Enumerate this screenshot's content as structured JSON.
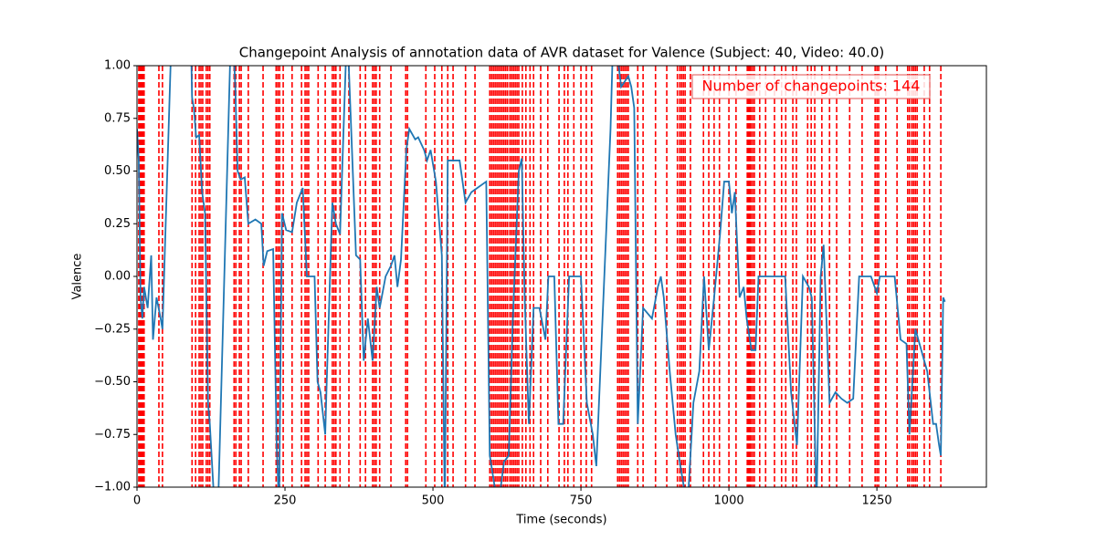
{
  "chart_data": {
    "type": "line",
    "title": "Changepoint Analysis of annotation data of AVR dataset for Valence (Subject: 40, Video: 40.0)",
    "xlabel": "Time (seconds)",
    "ylabel": "Valence",
    "annotation": "Number of changepoints: 144",
    "xlim": [
      0,
      1435
    ],
    "ylim": [
      -1,
      1
    ],
    "xticks": [
      0,
      250,
      500,
      750,
      1000,
      1250
    ],
    "yticks": [
      {
        "value": -1,
        "label": "−1.00"
      },
      {
        "value": -0.75,
        "label": "−0.75"
      },
      {
        "value": -0.5,
        "label": "−0.50"
      },
      {
        "value": -0.25,
        "label": "−0.25"
      },
      {
        "value": 0,
        "label": "0.00"
      },
      {
        "value": 0.25,
        "label": "0.25"
      },
      {
        "value": 0.5,
        "label": "0.50"
      },
      {
        "value": 0.75,
        "label": "0.75"
      },
      {
        "value": 1,
        "label": "1.00"
      }
    ],
    "x": [
      0,
      3,
      6,
      9,
      12,
      18,
      24,
      27,
      33,
      40,
      43,
      60,
      90,
      93,
      96,
      100,
      105,
      110,
      115,
      120,
      123,
      135,
      160,
      166,
      170,
      175,
      182,
      188,
      200,
      210,
      214,
      220,
      230,
      236,
      240,
      245,
      252,
      262,
      270,
      280,
      287,
      300,
      305,
      310,
      318,
      320,
      330,
      336,
      343,
      355,
      370,
      377,
      383,
      390,
      398,
      405,
      410,
      420,
      429,
      435,
      440,
      446,
      455,
      460,
      470,
      475,
      485,
      490,
      496,
      505,
      515,
      520,
      525,
      534,
      545,
      555,
      565,
      575,
      590,
      596,
      610,
      620,
      628,
      635,
      645,
      650,
      655,
      662,
      670,
      680,
      690,
      695,
      705,
      712,
      720,
      730,
      750,
      760,
      770,
      776,
      800,
      805,
      818,
      830,
      835,
      840,
      846,
      855,
      870,
      880,
      885,
      890,
      900,
      910,
      918,
      930,
      940,
      950,
      958,
      966,
      975,
      985,
      992,
      1000,
      1005,
      1010,
      1018,
      1025,
      1030,
      1038,
      1045,
      1050,
      1080,
      1095,
      1105,
      1115,
      1125,
      1135,
      1140,
      1148,
      1155,
      1160,
      1170,
      1180,
      1190,
      1200,
      1210,
      1220,
      1240,
      1250,
      1255,
      1280,
      1290,
      1300,
      1305,
      1315,
      1325,
      1335,
      1345,
      1350,
      1355,
      1358,
      1362,
      1365
    ],
    "series": [
      {
        "color": "#1f77b4",
        "values": [
          0.7,
          0.55,
          -0.1,
          -0.2,
          -0.05,
          -0.15,
          0.1,
          -0.3,
          -0.1,
          -0.2,
          -0.25,
          1.3,
          1.3,
          0.85,
          0.8,
          0.66,
          0.67,
          0.4,
          0.3,
          -0.6,
          -0.7,
          -1.3,
          1.3,
          0.9,
          0.5,
          0.46,
          0.47,
          0.25,
          0.27,
          0.25,
          0.05,
          0.12,
          0.13,
          -0.8,
          -1.1,
          0.3,
          0.22,
          0.21,
          0.35,
          0.42,
          0.0,
          0.0,
          -0.5,
          -0.55,
          -0.75,
          -0.55,
          0.35,
          0.25,
          0.2,
          1.2,
          0.1,
          0.08,
          -0.4,
          -0.2,
          -0.4,
          -0.05,
          -0.15,
          0.0,
          0.05,
          0.1,
          -0.05,
          0.08,
          0.6,
          0.7,
          0.65,
          0.66,
          0.6,
          0.55,
          0.6,
          0.45,
          0.1,
          -1.1,
          0.55,
          0.55,
          0.55,
          0.35,
          0.4,
          0.42,
          0.45,
          -0.85,
          -1.1,
          -0.88,
          -0.85,
          -0.2,
          0.5,
          0.56,
          -0.1,
          -0.7,
          -0.15,
          -0.15,
          -0.3,
          0.0,
          0.0,
          -0.7,
          -0.7,
          0.0,
          0.0,
          -0.6,
          -0.75,
          -0.9,
          0.7,
          1.2,
          0.9,
          0.95,
          0.9,
          0.8,
          -0.7,
          -0.15,
          -0.2,
          -0.05,
          0.0,
          -0.1,
          -0.45,
          -0.75,
          -0.9,
          -1.1,
          -0.6,
          -0.45,
          0.0,
          -0.35,
          -0.1,
          0.2,
          0.45,
          0.45,
          0.3,
          0.4,
          -0.1,
          -0.05,
          -0.2,
          -0.35,
          -0.35,
          0.0,
          0.0,
          0.0,
          -0.55,
          -0.8,
          0.0,
          -0.05,
          -0.1,
          -1.1,
          0.0,
          0.15,
          -0.6,
          -0.55,
          -0.58,
          -0.6,
          -0.58,
          0.0,
          0.0,
          -0.08,
          0.0,
          0.0,
          -0.3,
          -0.32,
          -0.75,
          -0.25,
          -0.35,
          -0.45,
          -0.7,
          -0.7,
          -0.8,
          -0.85,
          -0.1,
          -0.12
        ]
      }
    ],
    "changepoint_color": "#ff0000",
    "changepoints": [
      3,
      5,
      6,
      8,
      9,
      11,
      12,
      37,
      43,
      93,
      99,
      105,
      108,
      111,
      117,
      120,
      123,
      164,
      167,
      173,
      176,
      188,
      213,
      235,
      238,
      241,
      247,
      262,
      278,
      284,
      287,
      290,
      306,
      318,
      330,
      333,
      336,
      343,
      358,
      377,
      386,
      398,
      401,
      404,
      410,
      429,
      454,
      457,
      488,
      503,
      515,
      525,
      534,
      555,
      571,
      596,
      599,
      602,
      605,
      608,
      611,
      614,
      617,
      620,
      623,
      626,
      630,
      633,
      636,
      639,
      642,
      645,
      651,
      657,
      664,
      670,
      682,
      694,
      713,
      722,
      728,
      738,
      750,
      759,
      768,
      812,
      815,
      818,
      821,
      824,
      827,
      830,
      846,
      855,
      876,
      895,
      913,
      917,
      920,
      923,
      926,
      935,
      957,
      966,
      975,
      984,
      1000,
      1012,
      1031,
      1032,
      1034,
      1035,
      1037,
      1040,
      1043,
      1052,
      1062,
      1077,
      1089,
      1096,
      1108,
      1114,
      1133,
      1139,
      1145,
      1157,
      1170,
      1182,
      1204,
      1225,
      1247,
      1250,
      1253,
      1265,
      1284,
      1302,
      1305,
      1309,
      1312,
      1315,
      1318,
      1330,
      1339,
      1358
    ]
  }
}
